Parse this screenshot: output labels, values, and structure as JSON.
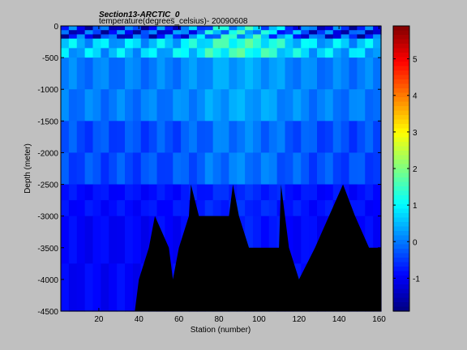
{
  "chart_data": {
    "type": "heatmap",
    "title_line1": "Section13-ARCTIC_0",
    "title_line2": "temperature(degrees_celsius)- 20090608",
    "xlabel": "Station (number)",
    "ylabel": "Depth (meter)",
    "xlim": [
      1,
      161
    ],
    "ylim": [
      -4500,
      0
    ],
    "x_ticks": [
      "20",
      "40",
      "60",
      "80",
      "100",
      "120",
      "140",
      "160"
    ],
    "x_tick_values": [
      20,
      40,
      60,
      80,
      100,
      120,
      140,
      160
    ],
    "y_ticks": [
      "0",
      "-500",
      "-1000",
      "-1500",
      "-2000",
      "-2500",
      "-3000",
      "-3500",
      "-4000",
      "-4500"
    ],
    "y_tick_values": [
      0,
      -500,
      -1000,
      -1500,
      -2000,
      -2500,
      -3000,
      -3500,
      -4000,
      -4500
    ],
    "colorbar_ticks": [
      "5",
      "4",
      "3",
      "2",
      "1",
      "0",
      "-1"
    ],
    "colorbar_tick_values": [
      5,
      4,
      3,
      2,
      1,
      0,
      -1
    ],
    "clim": [
      -1.9,
      5.9
    ],
    "colormap": "jet",
    "no_data_color": "#000000",
    "depth_layers": [
      {
        "top": 0,
        "bottom": -200,
        "temp_range": [
          -1.8,
          1.6
        ]
      },
      {
        "top": -200,
        "bottom": -500,
        "temp_range": [
          0.0,
          1.8
        ]
      },
      {
        "top": -500,
        "bottom": -1500,
        "temp_range": [
          -0.2,
          0.5
        ]
      },
      {
        "top": -1500,
        "bottom": -2500,
        "temp_range": [
          -0.6,
          0.2
        ]
      },
      {
        "top": -2500,
        "bottom": -3000,
        "temp_range": [
          -1.0,
          -0.5
        ]
      },
      {
        "top": -3000,
        "bottom": -4500,
        "temp_range": [
          -1.1,
          -0.6
        ]
      }
    ],
    "seafloor_station_depth": [
      [
        1,
        -4500
      ],
      [
        38,
        -4500
      ],
      [
        40,
        -4000
      ],
      [
        45,
        -3500
      ],
      [
        48,
        -3000
      ],
      [
        55,
        -3500
      ],
      [
        57,
        -4000
      ],
      [
        60,
        -3500
      ],
      [
        65,
        -3000
      ],
      [
        66,
        -2500
      ],
      [
        70,
        -3000
      ],
      [
        85,
        -3000
      ],
      [
        87,
        -2500
      ],
      [
        90,
        -3000
      ],
      [
        95,
        -3500
      ],
      [
        110,
        -3500
      ],
      [
        111,
        -2500
      ],
      [
        115,
        -3500
      ],
      [
        120,
        -4000
      ],
      [
        128,
        -3500
      ],
      [
        135,
        -3000
      ],
      [
        142,
        -2500
      ],
      [
        148,
        -3000
      ],
      [
        155,
        -3500
      ],
      [
        161,
        -3500
      ]
    ]
  }
}
